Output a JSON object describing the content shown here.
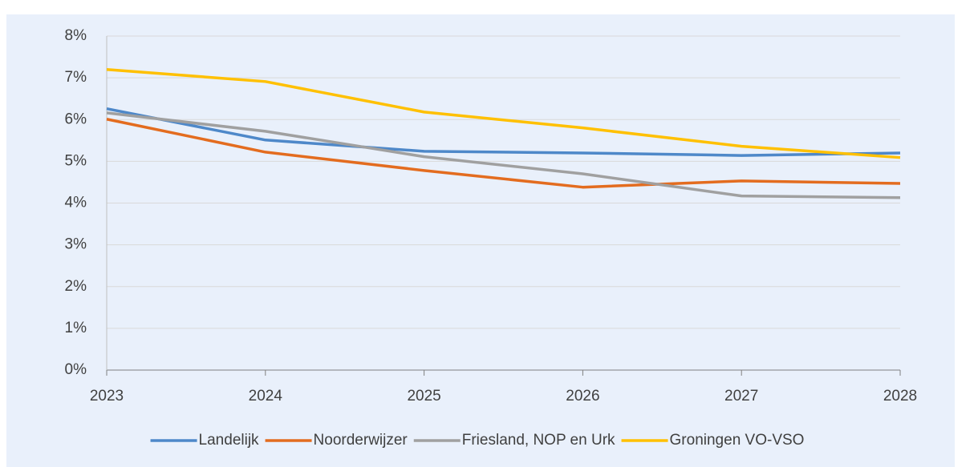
{
  "chart_data": {
    "type": "line",
    "x": [
      2023,
      2024,
      2025,
      2026,
      2027,
      2028
    ],
    "xlim": [
      2023,
      2028
    ],
    "xticks": [
      2023,
      2024,
      2025,
      2026,
      2027,
      2028
    ],
    "ylim": [
      0,
      8
    ],
    "yticks": [
      {
        "value": 0,
        "label": "0%"
      },
      {
        "value": 1,
        "label": "1%"
      },
      {
        "value": 2,
        "label": "2%"
      },
      {
        "value": 3,
        "label": "3%"
      },
      {
        "value": 4,
        "label": "4%"
      },
      {
        "value": 5,
        "label": "5%"
      },
      {
        "value": 6,
        "label": "6%"
      },
      {
        "value": 7,
        "label": "7%"
      },
      {
        "value": 8,
        "label": "8%"
      }
    ],
    "grid": true,
    "legend": "bottom",
    "series": [
      {
        "name": "Landelijk",
        "color": "#4e88c9",
        "values": [
          6.26,
          5.51,
          5.24,
          5.2,
          5.14,
          5.2
        ]
      },
      {
        "name": "Noorderwijzer",
        "color": "#e36c1f",
        "values": [
          6.01,
          5.22,
          4.78,
          4.38,
          4.53,
          4.47
        ]
      },
      {
        "name": "Friesland, NOP en Urk",
        "color": "#a0a0a0",
        "values": [
          6.16,
          5.72,
          5.11,
          4.7,
          4.17,
          4.13
        ]
      },
      {
        "name": "Groningen VO-VSO",
        "color": "#ffc000",
        "values": [
          7.2,
          6.91,
          6.18,
          5.8,
          5.36,
          5.09
        ]
      }
    ]
  }
}
